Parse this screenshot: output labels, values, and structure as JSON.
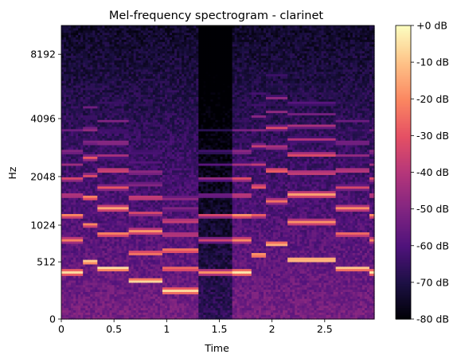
{
  "chart_data": {
    "type": "heatmap",
    "title": "Mel-frequency spectrogram - clarinet",
    "xlabel": "Time",
    "ylabel": "Hz",
    "xlim": [
      0,
      2.97
    ],
    "x_ticks": [
      {
        "value": 0,
        "label": "0"
      },
      {
        "value": 0.5,
        "label": "0.5"
      },
      {
        "value": 1,
        "label": "1"
      },
      {
        "value": 1.5,
        "label": "1.5"
      },
      {
        "value": 2,
        "label": "2"
      },
      {
        "value": 2.5,
        "label": "2.5"
      }
    ],
    "y_scale": "mel",
    "y_ticks": [
      {
        "value": 0,
        "label": "0"
      },
      {
        "value": 512,
        "label": "512"
      },
      {
        "value": 1024,
        "label": "1024"
      },
      {
        "value": 2048,
        "label": "2048"
      },
      {
        "value": 4096,
        "label": "4096"
      },
      {
        "value": 8192,
        "label": "8192"
      }
    ],
    "colorbar": {
      "colormap": "magma",
      "range_db": [
        -80,
        0
      ],
      "ticks": [
        {
          "value": 0,
          "label": "+0 dB"
        },
        {
          "value": -10,
          "label": "-10 dB"
        },
        {
          "value": -20,
          "label": "-20 dB"
        },
        {
          "value": -30,
          "label": "-30 dB"
        },
        {
          "value": -40,
          "label": "-40 dB"
        },
        {
          "value": -50,
          "label": "-50 dB"
        },
        {
          "value": -60,
          "label": "-60 dB"
        },
        {
          "value": -70,
          "label": "-70 dB"
        },
        {
          "value": -80,
          "label": "-80 dB"
        }
      ]
    },
    "notes_approx": [
      {
        "t_start": 0.0,
        "t_end": 0.2,
        "f0_hz": 400,
        "db": -5
      },
      {
        "t_start": 0.2,
        "t_end": 0.35,
        "f0_hz": 520,
        "db": -3
      },
      {
        "t_start": 0.35,
        "t_end": 0.65,
        "f0_hz": 445,
        "db": -2
      },
      {
        "t_start": 0.65,
        "t_end": 0.95,
        "f0_hz": 310,
        "db": -3
      },
      {
        "t_start": 0.95,
        "t_end": 1.3,
        "f0_hz": 220,
        "db": -4
      },
      {
        "t_start": 1.65,
        "t_end": 1.8,
        "f0_hz": 400,
        "db": -3
      },
      {
        "t_start": 1.8,
        "t_end": 1.95,
        "f0_hz": 600,
        "db": -10
      },
      {
        "t_start": 1.95,
        "t_end": 2.15,
        "f0_hz": 740,
        "db": -8
      },
      {
        "t_start": 2.15,
        "t_end": 2.6,
        "f0_hz": 540,
        "db": -2
      },
      {
        "t_start": 2.6,
        "t_end": 2.92,
        "f0_hz": 445,
        "db": -6
      },
      {
        "t_start": 2.92,
        "t_end": 2.97,
        "f0_hz": 400,
        "db": -4
      }
    ],
    "grid": false
  }
}
